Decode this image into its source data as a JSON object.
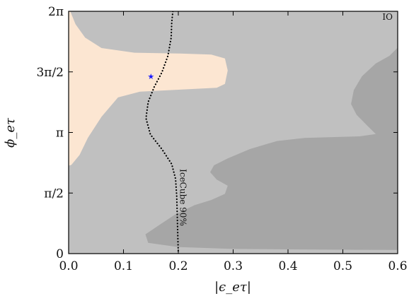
{
  "chart_data": {
    "type": "area",
    "title": "",
    "xlabel": "|ϵ_eτ|",
    "ylabel": "ϕ_eτ",
    "xlim": [
      0,
      0.6
    ],
    "ylim": [
      0,
      6.2832
    ],
    "x_ticks": [
      {
        "value": 0.0,
        "label": "0.0"
      },
      {
        "value": 0.1,
        "label": "0.1"
      },
      {
        "value": 0.2,
        "label": "0.2"
      },
      {
        "value": 0.3,
        "label": "0.3"
      },
      {
        "value": 0.4,
        "label": "0.4"
      },
      {
        "value": 0.5,
        "label": "0.5"
      },
      {
        "value": 0.6,
        "label": "0.6"
      }
    ],
    "y_ticks": [
      {
        "value": 0,
        "label": "0"
      },
      {
        "value": 1.5708,
        "label": "π/2"
      },
      {
        "value": 3.1416,
        "label": "π"
      },
      {
        "value": 4.7124,
        "label": "3π/2"
      },
      {
        "value": 6.2832,
        "label": "2π"
      }
    ],
    "grid": false,
    "corner_label": "IO",
    "colors": {
      "outer_region": "#c0c0c0",
      "inner_region": "#a6a6a6",
      "allowed_region": "#fce6d2",
      "best_fit": "#1a1aff",
      "icecube_line": "#000000"
    },
    "regions": [
      {
        "role": "outer_region",
        "boundary": [
          [
            0.003,
            6.283
          ],
          [
            0.0,
            6.283
          ],
          [
            0.0,
            0.0
          ],
          [
            0.6,
            0.0
          ],
          [
            0.6,
            6.283
          ]
        ]
      },
      {
        "role": "inner_region",
        "boundary": [
          [
            0.6,
            5.34
          ],
          [
            0.585,
            5.13
          ],
          [
            0.56,
            4.93
          ],
          [
            0.535,
            4.6
          ],
          [
            0.52,
            4.24
          ],
          [
            0.515,
            3.88
          ],
          [
            0.525,
            3.6
          ],
          [
            0.545,
            3.31
          ],
          [
            0.56,
            3.1
          ],
          [
            0.53,
            3.04
          ],
          [
            0.48,
            3.02
          ],
          [
            0.43,
            3.0
          ],
          [
            0.38,
            2.92
          ],
          [
            0.33,
            2.71
          ],
          [
            0.29,
            2.47
          ],
          [
            0.265,
            2.29
          ],
          [
            0.258,
            2.11
          ],
          [
            0.27,
            1.92
          ],
          [
            0.29,
            1.76
          ],
          [
            0.285,
            1.55
          ],
          [
            0.26,
            1.39
          ],
          [
            0.23,
            1.26
          ],
          [
            0.195,
            1.02
          ],
          [
            0.165,
            0.74
          ],
          [
            0.14,
            0.5
          ],
          [
            0.145,
            0.28
          ],
          [
            0.2,
            0.17
          ],
          [
            0.3,
            0.12
          ],
          [
            0.4,
            0.11
          ],
          [
            0.5,
            0.1
          ],
          [
            0.6,
            0.095
          ]
        ]
      },
      {
        "role": "allowed_region",
        "boundary": [
          [
            0.0,
            6.283
          ],
          [
            0.003,
            6.283
          ],
          [
            0.0125,
            5.95
          ],
          [
            0.03,
            5.6
          ],
          [
            0.06,
            5.33
          ],
          [
            0.12,
            5.21
          ],
          [
            0.2,
            5.19
          ],
          [
            0.26,
            5.16
          ],
          [
            0.285,
            5.06
          ],
          [
            0.29,
            4.75
          ],
          [
            0.285,
            4.4
          ],
          [
            0.27,
            4.3
          ],
          [
            0.2,
            4.25
          ],
          [
            0.13,
            4.2
          ],
          [
            0.09,
            4.05
          ],
          [
            0.06,
            3.55
          ],
          [
            0.035,
            3.0
          ],
          [
            0.02,
            2.56
          ],
          [
            0.005,
            2.3
          ],
          [
            0.0,
            2.28
          ]
        ]
      }
    ],
    "series": [
      {
        "name": "IceCube 90%",
        "style": "dotted",
        "points": [
          [
            0.19,
            6.283
          ],
          [
            0.188,
            6.0
          ],
          [
            0.187,
            5.6
          ],
          [
            0.181,
            5.13
          ],
          [
            0.17,
            4.7
          ],
          [
            0.156,
            4.32
          ],
          [
            0.145,
            3.93
          ],
          [
            0.141,
            3.51
          ],
          [
            0.149,
            3.09
          ],
          [
            0.17,
            2.71
          ],
          [
            0.188,
            2.32
          ],
          [
            0.195,
            1.94
          ],
          [
            0.197,
            1.5
          ],
          [
            0.198,
            1.0
          ],
          [
            0.199,
            0.5
          ],
          [
            0.2,
            0.0
          ]
        ]
      }
    ],
    "points": [
      {
        "name": "best-fit",
        "x": 0.15,
        "y": 4.6,
        "marker": "★"
      }
    ],
    "annotations": [
      {
        "text": "IceCube 90%",
        "x": 0.198,
        "y": 1.5,
        "rotation": 90
      }
    ]
  }
}
